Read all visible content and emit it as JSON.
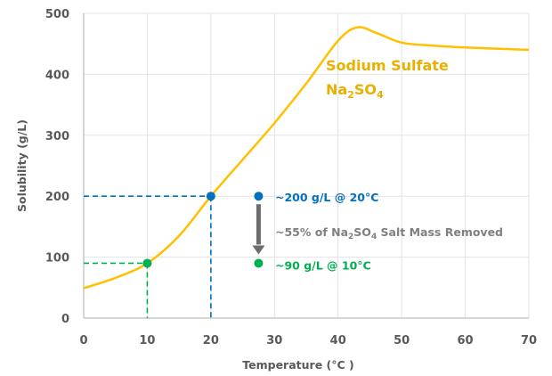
{
  "chart_data": {
    "type": "line",
    "title": "",
    "xlabel": "Temperature (°C )",
    "ylabel": "Solubility (g/L)",
    "xlim": [
      0,
      70
    ],
    "ylim": [
      0,
      500
    ],
    "grid": true,
    "x_ticks": [
      "0",
      "10",
      "20",
      "30",
      "40",
      "50",
      "60",
      "70"
    ],
    "y_ticks": [
      "0",
      "100",
      "200",
      "300",
      "400",
      "500"
    ],
    "x_tick_values": [
      0,
      10,
      20,
      30,
      40,
      50,
      60,
      70
    ],
    "y_tick_values": [
      0,
      100,
      200,
      300,
      400,
      500
    ],
    "series": [
      {
        "name": "Sodium Sulfate",
        "formula_base": "Na",
        "formula_sub1": "2",
        "formula_mid": "SO",
        "formula_sub2": "4",
        "color": "#FFC000",
        "label_color": "#E8B000",
        "x": [
          0,
          5,
          10,
          15,
          20,
          25,
          30,
          35,
          40,
          43,
          46,
          50,
          55,
          60,
          65,
          70
        ],
        "y": [
          49,
          66,
          90,
          135,
          200,
          260,
          320,
          385,
          455,
          477,
          468,
          452,
          447,
          444,
          442,
          440
        ]
      }
    ],
    "reference_points": [
      {
        "name": "high",
        "x": 20,
        "y": 200,
        "color": "#0070C0"
      },
      {
        "name": "low",
        "x": 10,
        "y": 90,
        "color": "#00B050"
      }
    ],
    "annotations": {
      "high_label": "~200 g/L @ 20°C",
      "low_label": "~90 g/L @ 10°C",
      "removed_prefix": "~55% of Na",
      "removed_sub1": "2",
      "removed_mid": "SO",
      "removed_sub2": "4",
      "removed_suffix": " Salt Mass Removed",
      "high_color": "#0070C0",
      "low_color": "#00B050",
      "removed_color": "#808080",
      "arrow_color": "#6D6D6D",
      "marker_x": 27.5
    }
  }
}
